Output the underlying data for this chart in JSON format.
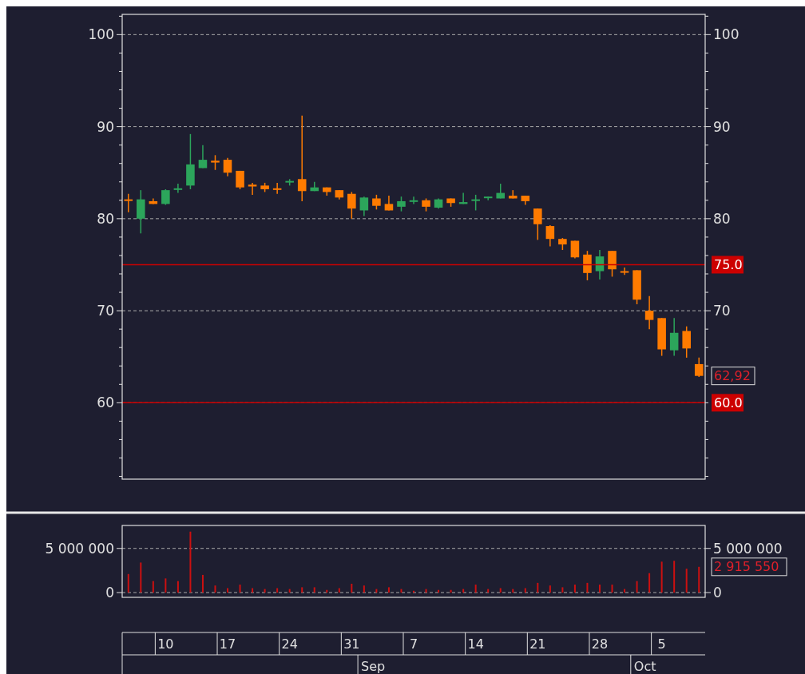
{
  "chart_data": [
    {
      "type": "candlestick",
      "tick_labels": "y",
      "grid": "y",
      "categories": [
        null,
        null,
        null,
        "10",
        null,
        null,
        null,
        null,
        "17",
        null,
        null,
        null,
        null,
        "24",
        null,
        null,
        null,
        null,
        "31",
        null,
        null,
        null,
        null,
        "7",
        null,
        null,
        null,
        null,
        "14",
        null,
        null,
        null,
        null,
        "21",
        null,
        null,
        null,
        null,
        "28",
        null,
        null,
        null,
        null,
        "5",
        null,
        null,
        null
      ],
      "ohlc": [
        [
          82.1,
          82.7,
          80.7,
          82.0
        ],
        [
          80.0,
          83.1,
          78.4,
          82.1
        ],
        [
          81.9,
          82.2,
          81.6,
          81.6
        ],
        [
          81.6,
          83.2,
          81.5,
          83.1
        ],
        [
          83.2,
          83.8,
          82.8,
          83.3
        ],
        [
          83.6,
          89.2,
          83.2,
          85.9
        ],
        [
          85.5,
          88.0,
          85.5,
          86.4
        ],
        [
          86.3,
          86.9,
          85.3,
          86.1
        ],
        [
          86.4,
          86.6,
          84.6,
          85.0
        ],
        [
          85.2,
          85.2,
          83.2,
          83.4
        ],
        [
          83.7,
          83.9,
          82.6,
          83.5
        ],
        [
          83.6,
          83.9,
          82.9,
          83.2
        ],
        [
          83.3,
          83.9,
          82.7,
          83.2
        ],
        [
          84.0,
          84.3,
          83.6,
          84.1
        ],
        [
          84.3,
          91.2,
          81.9,
          83.0
        ],
        [
          83.0,
          84.0,
          83.0,
          83.4
        ],
        [
          83.4,
          83.4,
          82.5,
          82.9
        ],
        [
          83.1,
          83.1,
          82.1,
          82.3
        ],
        [
          82.7,
          82.9,
          80.0,
          81.1
        ],
        [
          80.9,
          82.4,
          80.3,
          82.3
        ],
        [
          82.2,
          82.6,
          81.0,
          81.4
        ],
        [
          81.6,
          82.5,
          80.9,
          80.9
        ],
        [
          81.3,
          82.4,
          80.8,
          81.9
        ],
        [
          81.9,
          82.4,
          81.6,
          82.0
        ],
        [
          82.0,
          82.2,
          80.8,
          81.3
        ],
        [
          81.2,
          82.2,
          81.1,
          82.1
        ],
        [
          82.2,
          82.2,
          81.3,
          81.7
        ],
        [
          81.6,
          82.8,
          81.6,
          81.8
        ],
        [
          82.0,
          82.6,
          80.9,
          82.1
        ],
        [
          82.3,
          82.4,
          82.0,
          82.4
        ],
        [
          82.2,
          83.8,
          82.2,
          82.8
        ],
        [
          82.5,
          83.1,
          82.2,
          82.2
        ],
        [
          82.5,
          82.5,
          81.5,
          81.9
        ],
        [
          81.1,
          81.1,
          77.7,
          79.4
        ],
        [
          79.2,
          79.3,
          77.0,
          77.8
        ],
        [
          77.8,
          77.9,
          76.6,
          77.2
        ],
        [
          77.6,
          77.6,
          75.7,
          75.8
        ],
        [
          76.1,
          76.5,
          73.3,
          74.1
        ],
        [
          74.3,
          76.6,
          73.4,
          75.9
        ],
        [
          76.5,
          76.5,
          73.7,
          74.5
        ],
        [
          74.3,
          74.7,
          73.9,
          74.2
        ],
        [
          74.4,
          74.4,
          70.7,
          71.2
        ],
        [
          70.0,
          71.6,
          68.0,
          69.0
        ],
        [
          69.2,
          69.2,
          65.1,
          65.8
        ],
        [
          65.7,
          69.2,
          65.1,
          67.6
        ],
        [
          67.8,
          68.3,
          64.9,
          65.9
        ],
        [
          64.2,
          64.9,
          62.8,
          62.92
        ]
      ],
      "colors": [
        "#ff7b00",
        "#2ca55b",
        "#ff7b00",
        "#2ca55b",
        "#2ca55b",
        "#2ca55b",
        "#2ca55b",
        "#ff7b00",
        "#ff7b00",
        "#ff7b00",
        "#ff7b00",
        "#ff7b00",
        "#ff7b00",
        "#2ca55b",
        "#ff7b00",
        "#2ca55b",
        "#ff7b00",
        "#ff7b00",
        "#ff7b00",
        "#2ca55b",
        "#ff7b00",
        "#ff7b00",
        "#2ca55b",
        "#2ca55b",
        "#ff7b00",
        "#2ca55b",
        "#ff7b00",
        "#2ca55b",
        "#2ca55b",
        "#2ca55b",
        "#2ca55b",
        "#ff7b00",
        "#ff7b00",
        "#ff7b00",
        "#ff7b00",
        "#ff7b00",
        "#ff7b00",
        "#ff7b00",
        "#2ca55b",
        "#ff7b00",
        "#ff7b00",
        "#ff7b00",
        "#ff7b00",
        "#ff7b00",
        "#2ca55b",
        "#ff7b00",
        "#ff7b00"
      ],
      "ylim": [
        51.7,
        102.2
      ],
      "yticks": [
        {
          "value": 52,
          "label": null
        },
        {
          "value": 54,
          "label": null
        },
        {
          "value": 56,
          "label": null
        },
        {
          "value": 58,
          "label": null
        },
        60,
        {
          "value": 62,
          "label": null
        },
        {
          "value": 64,
          "label": null
        },
        {
          "value": 66,
          "label": null
        },
        {
          "value": 68,
          "label": null
        },
        70,
        {
          "value": 72,
          "label": null
        },
        {
          "value": 74,
          "label": null
        },
        {
          "value": 76,
          "label": null
        },
        {
          "value": 78,
          "label": null
        },
        80,
        {
          "value": 82,
          "label": null
        },
        {
          "value": 84,
          "label": null
        },
        {
          "value": 86,
          "label": null
        },
        {
          "value": 88,
          "label": null
        },
        90,
        {
          "value": 92,
          "label": null
        },
        {
          "value": 94,
          "label": null
        },
        {
          "value": 96,
          "label": null
        },
        {
          "value": 98,
          "label": null
        },
        100,
        {
          "value": 102,
          "label": null
        }
      ],
      "y2lim": [
        51.7,
        102.2
      ],
      "y2ticks": [
        {
          "value": 52,
          "label": null
        },
        {
          "value": 54,
          "label": null
        },
        {
          "value": 56,
          "label": null
        },
        {
          "value": 58,
          "label": null
        },
        {
          "value": 60,
          "label": null
        },
        {
          "value": 62,
          "label": null
        },
        {
          "value": 64,
          "label": null
        },
        {
          "value": 66,
          "label": null
        },
        {
          "value": 68,
          "label": null
        },
        70,
        {
          "value": 72,
          "label": null
        },
        {
          "value": 74,
          "label": null
        },
        {
          "value": 76,
          "label": null
        },
        {
          "value": 78,
          "label": null
        },
        80,
        {
          "value": 82,
          "label": null
        },
        {
          "value": 84,
          "label": null
        },
        {
          "value": 86,
          "label": null
        },
        {
          "value": 88,
          "label": null
        },
        90,
        {
          "value": 92,
          "label": null
        },
        {
          "value": 94,
          "label": null
        },
        {
          "value": 96,
          "label": null
        },
        {
          "value": 98,
          "label": null
        },
        100,
        {
          "value": 102,
          "label": null
        }
      ],
      "ref_lines": [
        {
          "axis": "y2",
          "value": 75,
          "label": "75.0",
          "color": "#cc0000"
        },
        {
          "axis": "y2",
          "value": 60,
          "label": "60.0",
          "color": "#cc0000"
        }
      ],
      "annotations": [
        "62,92"
      ]
    },
    {
      "type": "bar",
      "grid": "y",
      "color": "#cc1010",
      "categories": [
        null,
        null,
        null,
        "10",
        null,
        null,
        null,
        null,
        "17",
        null,
        null,
        null,
        null,
        "24",
        null,
        null,
        null,
        null,
        "31",
        null,
        null,
        null,
        null,
        "7",
        null,
        null,
        null,
        null,
        "14",
        null,
        null,
        null,
        null,
        "21",
        null,
        null,
        null,
        null,
        "28",
        null,
        null,
        null,
        null,
        "5",
        null,
        null,
        null
      ],
      "values": [
        2100000,
        3400000,
        1300000,
        1600000,
        1300000,
        6900000,
        2000000,
        800000,
        500000,
        900000,
        500000,
        400000,
        500000,
        400000,
        600000,
        600000,
        300000,
        500000,
        1000000,
        800000,
        400000,
        600000,
        400000,
        200000,
        400000,
        300000,
        300000,
        400000,
        900000,
        400000,
        500000,
        400000,
        500000,
        1100000,
        800000,
        600000,
        900000,
        1100000,
        900000,
        900000,
        400000,
        1300000,
        2200000,
        3500000,
        3600000,
        2700000,
        2915550
      ],
      "ylim": [
        -540000,
        7600000
      ],
      "yticks": [
        0,
        {
          "value": 5000000,
          "label": "5 000 000"
        }
      ],
      "y2lim": [
        -540000,
        7600000
      ],
      "y2ticks": [
        0,
        {
          "value": 5000000,
          "label": "5 000 000"
        }
      ],
      "annotations": [
        "2 915 550",
        "Sep",
        "Oct"
      ]
    }
  ]
}
